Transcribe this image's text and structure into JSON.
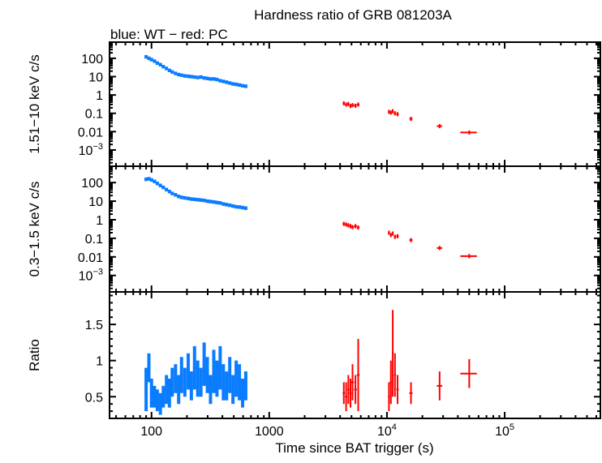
{
  "chart_data": {
    "type": "scatter",
    "title": "Hardness ratio of GRB 081203A",
    "subtitle": "blue: WT − red: PC",
    "xlabel": "Time since BAT trigger (s)",
    "xscale": "log",
    "xlim": [
      44,
      650000
    ],
    "xticks": [
      {
        "v": 100,
        "label": "100"
      },
      {
        "v": 1000,
        "label": "1000"
      },
      {
        "v": 10000,
        "label": "10^4"
      },
      {
        "v": 100000,
        "label": "10^5"
      }
    ],
    "colors": {
      "WT": "#0a7cff",
      "PC": "#ff0000"
    },
    "panels": [
      {
        "ylabel": "1.51−10 keV c/s",
        "yscale": "log",
        "ylim": [
          0.00013,
          760
        ],
        "yticks": [
          {
            "v": 100,
            "label": "100"
          },
          {
            "v": 10,
            "label": "10"
          },
          {
            "v": 1,
            "label": "1"
          },
          {
            "v": 0.1,
            "label": "0.1"
          },
          {
            "v": 0.01,
            "label": "0.01"
          },
          {
            "v": 0.001,
            "label": "10^-3"
          }
        ],
        "WT": [
          120,
          100,
          85,
          70,
          55,
          45,
          35,
          28,
          22,
          18,
          15,
          13,
          12,
          11,
          10.5,
          10,
          9.5,
          9,
          9.5,
          8.5,
          8,
          7.5,
          7.5,
          7,
          6,
          5.5,
          5,
          4.5,
          4,
          3.8,
          3.5,
          3.2,
          3.0
        ],
        "PC": [
          0.35,
          0.3,
          0.32,
          0.25,
          0.28,
          0.26,
          0.3,
          0.12,
          0.11,
          0.13,
          0.1,
          0.09,
          0.05,
          0.02,
          0.009
        ]
      },
      {
        "ylabel": "0.3−1.5 keV c/s",
        "yscale": "log",
        "ylim": [
          0.00013,
          760
        ],
        "yticks": [
          {
            "v": 100,
            "label": "100"
          },
          {
            "v": 10,
            "label": "10"
          },
          {
            "v": 1,
            "label": "1"
          },
          {
            "v": 0.1,
            "label": "0.1"
          },
          {
            "v": 0.01,
            "label": "0.01"
          },
          {
            "v": 0.001,
            "label": "10^-3"
          }
        ],
        "WT": [
          150,
          160,
          140,
          115,
          90,
          70,
          55,
          42,
          33,
          26,
          22,
          18,
          16,
          15,
          14,
          13,
          12.5,
          12,
          11.5,
          11,
          10,
          9.5,
          9,
          8.5,
          8,
          7,
          6.5,
          6,
          5.5,
          5,
          4.8,
          4.5,
          4.2
        ],
        "PC": [
          0.6,
          0.55,
          0.5,
          0.45,
          0.4,
          0.45,
          0.38,
          0.2,
          0.15,
          0.18,
          0.12,
          0.13,
          0.08,
          0.03,
          0.011
        ]
      },
      {
        "ylabel": "Ratio",
        "yscale": "linear",
        "ylim": [
          0.2,
          1.95
        ],
        "yticks": [
          {
            "v": 1.5,
            "label": "1.5"
          },
          {
            "v": 1,
            "label": "1"
          },
          {
            "v": 0.5,
            "label": "0.5"
          }
        ],
        "WT": [
          0.6,
          0.9,
          0.55,
          0.5,
          0.45,
          0.4,
          0.5,
          0.6,
          0.55,
          0.7,
          0.75,
          0.6,
          0.8,
          0.7,
          0.85,
          0.65,
          0.9,
          0.75,
          0.7,
          0.95,
          0.8,
          0.6,
          0.85,
          0.75,
          0.9,
          0.7,
          0.65,
          0.8,
          0.6,
          0.75,
          0.7,
          0.55,
          0.65
        ],
        "WT_err": [
          0.3,
          0.2,
          0.2,
          0.15,
          0.15,
          0.15,
          0.15,
          0.2,
          0.2,
          0.2,
          0.2,
          0.2,
          0.25,
          0.2,
          0.25,
          0.2,
          0.3,
          0.25,
          0.2,
          0.3,
          0.25,
          0.2,
          0.3,
          0.25,
          0.3,
          0.25,
          0.2,
          0.25,
          0.2,
          0.25,
          0.25,
          0.2,
          0.2
        ],
        "PC": [
          0.55,
          0.5,
          0.6,
          0.55,
          0.7,
          0.6,
          0.8,
          0.5,
          0.7,
          1.1,
          0.8,
          0.6,
          0.55,
          0.65,
          0.82
        ],
        "PC_err": [
          0.15,
          0.2,
          0.2,
          0.2,
          0.25,
          0.2,
          0.5,
          0.2,
          0.3,
          0.6,
          0.3,
          0.2,
          0.15,
          0.2,
          0.2
        ]
      }
    ],
    "WT_time": [
      90,
      95,
      100,
      106,
      112,
      119,
      126,
      134,
      142,
      150,
      160,
      170,
      180,
      192,
      205,
      218,
      232,
      247,
      263,
      280,
      298,
      317,
      338,
      360,
      383,
      408,
      434,
      462,
      492,
      524,
      558,
      594,
      632
    ],
    "PC_time": [
      4300,
      4500,
      4700,
      4900,
      5100,
      5400,
      5700,
      10400,
      10800,
      11200,
      11700,
      12300,
      16000,
      28000,
      50000
    ],
    "PC_time_err": [
      100,
      100,
      100,
      100,
      150,
      150,
      150,
      200,
      200,
      200,
      250,
      300,
      500,
      1500,
      8000
    ]
  }
}
